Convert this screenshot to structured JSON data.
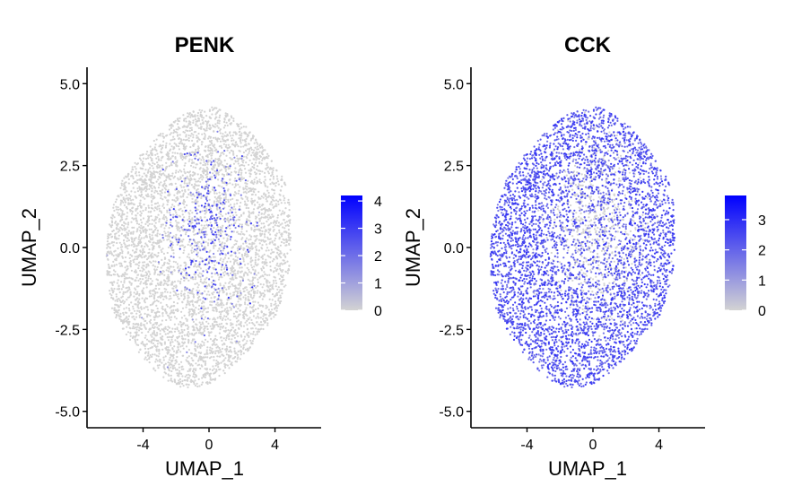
{
  "chart_data": [
    {
      "type": "scatter",
      "title": "PENK",
      "xlabel": "UMAP_1",
      "ylabel": "UMAP_2",
      "xlim": [
        -7.4,
        6.8
      ],
      "ylim": [
        -5.5,
        5.5
      ],
      "x_ticks": [
        -4,
        0,
        4
      ],
      "x_tick_labels": [
        "-4",
        "0",
        "4"
      ],
      "y_ticks": [
        -5,
        -2.5,
        0,
        2.5,
        5
      ],
      "y_tick_labels": [
        "-5.0",
        "-2.5",
        "0.0",
        "2.5",
        "5.0"
      ],
      "grid": false,
      "legend": {
        "placement": "right",
        "type": "colorbar",
        "min": 0,
        "max": 4.2,
        "ticks": [
          0,
          1,
          2,
          3,
          4
        ],
        "tick_labels": [
          "0",
          "1",
          "2",
          "3",
          "4"
        ],
        "low_color": "#d3d3d3",
        "high_color": "#0000ff"
      },
      "expression_pattern": "sparse, concentrated in central region around UMAP_1 ≈ -1..2, UMAP_2 ≈ -1..2",
      "point_color_low": "#d3d3d3",
      "point_color_high": "#0000ff"
    },
    {
      "type": "scatter",
      "title": "CCK",
      "xlabel": "UMAP_1",
      "ylabel": "UMAP_2",
      "xlim": [
        -7.4,
        6.8
      ],
      "ylim": [
        -5.5,
        5.5
      ],
      "x_ticks": [
        -4,
        0,
        4
      ],
      "x_tick_labels": [
        "-4",
        "0",
        "4"
      ],
      "y_ticks": [
        -5,
        -2.5,
        0,
        2.5,
        5
      ],
      "y_tick_labels": [
        "-5.0",
        "-2.5",
        "0.0",
        "2.5",
        "5.0"
      ],
      "grid": false,
      "legend": {
        "placement": "right",
        "type": "colorbar",
        "min": 0,
        "max": 3.8,
        "ticks": [
          0,
          1,
          2,
          3
        ],
        "tick_labels": [
          "0",
          "1",
          "2",
          "3"
        ],
        "low_color": "#d3d3d3",
        "high_color": "#0000ff"
      },
      "expression_pattern": "broad expression across outer ring, low in central region",
      "point_color_low": "#d3d3d3",
      "point_color_high": "#0000ff"
    }
  ]
}
